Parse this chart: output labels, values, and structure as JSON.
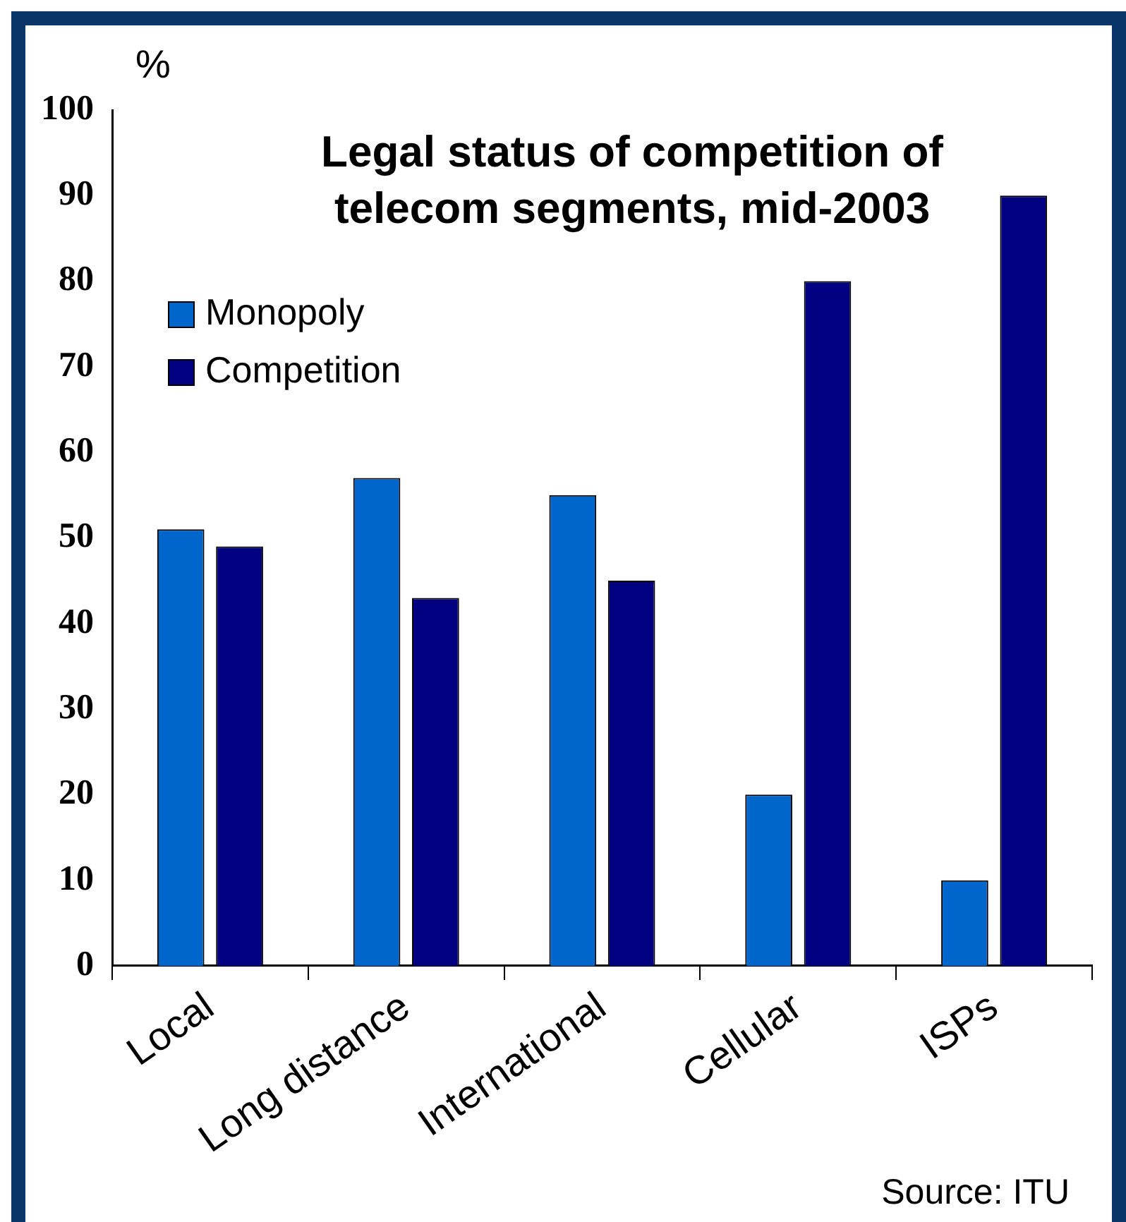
{
  "chart_data": {
    "type": "bar",
    "title": "Legal status of competition of telecom segments, mid-2003",
    "ylabel": "%",
    "categories": [
      "Local",
      "Long distance",
      "International",
      "Cellular",
      "ISPs"
    ],
    "series": [
      {
        "name": "Monopoly",
        "color": "#0066cc",
        "values": [
          51,
          57,
          55,
          20,
          10
        ]
      },
      {
        "name": "Competition",
        "color": "#000080",
        "values": [
          49,
          43,
          45,
          80,
          90
        ]
      }
    ],
    "ylim": [
      0,
      100
    ],
    "yticks": [
      0,
      10,
      20,
      30,
      40,
      50,
      60,
      70,
      80,
      90,
      100
    ],
    "grid": false,
    "legend": "top left",
    "annotations": [
      "Source: ITU"
    ]
  }
}
